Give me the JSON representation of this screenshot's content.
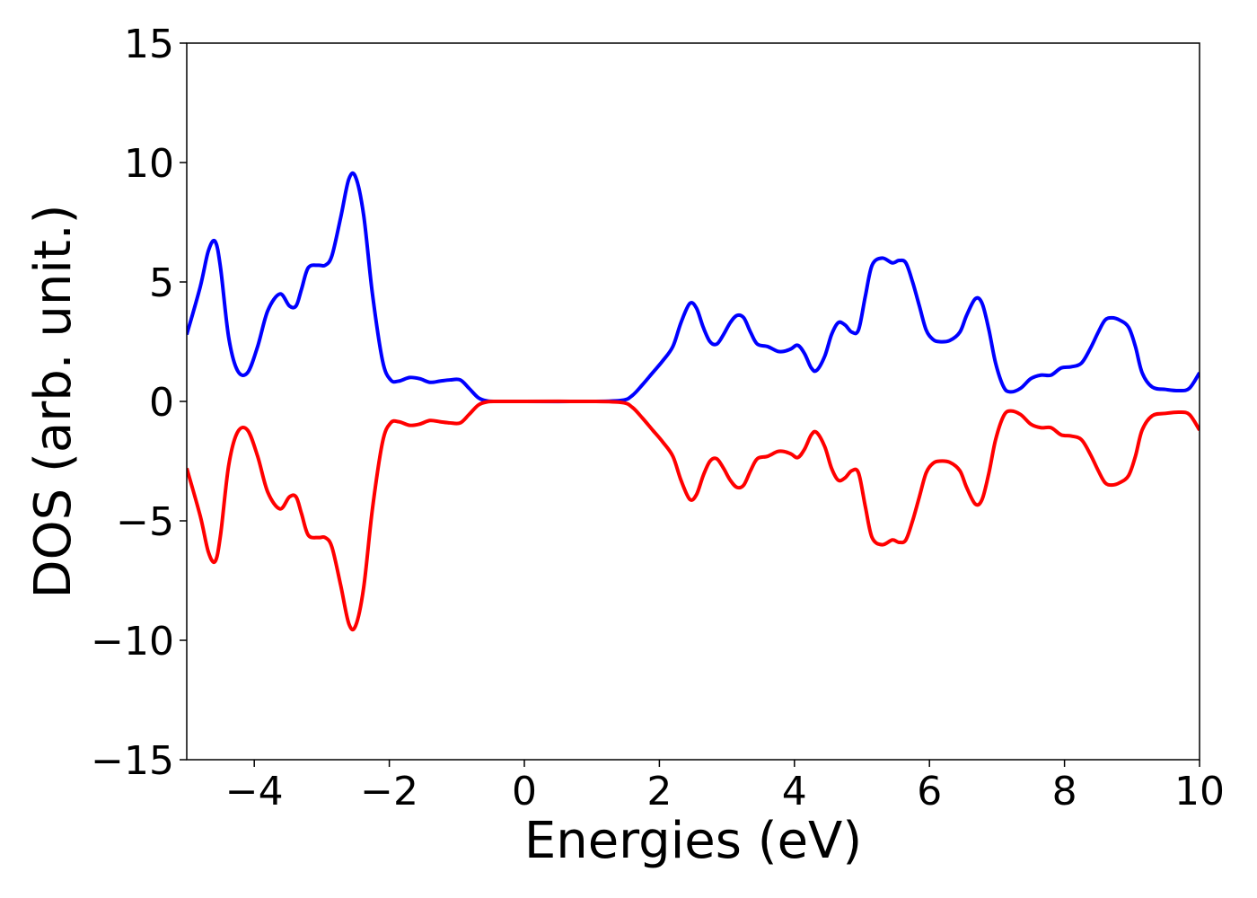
{
  "chart_data": {
    "type": "line",
    "title": "",
    "xlabel": "Energies (eV)",
    "ylabel": "DOS (arb. unit.)",
    "xlim": [
      -5,
      10
    ],
    "ylim": [
      -15,
      15
    ],
    "xticks": [
      -4,
      -2,
      0,
      2,
      4,
      6,
      8,
      10
    ],
    "xtick_labels": [
      "−4",
      "−2",
      "0",
      "2",
      "4",
      "6",
      "8",
      "10"
    ],
    "yticks": [
      15,
      10,
      5,
      0,
      -5,
      -10,
      -15
    ],
    "ytick_labels": [
      "15",
      "10",
      "5",
      "0",
      "−5",
      "−10",
      "−15"
    ],
    "grid": false,
    "legend": "none",
    "series": [
      {
        "color": "#0000ff",
        "x": [
          -5.0,
          -4.8,
          -4.68,
          -4.58,
          -4.5,
          -4.38,
          -4.25,
          -4.1,
          -3.95,
          -3.8,
          -3.62,
          -3.48,
          -3.38,
          -3.3,
          -3.2,
          -3.05,
          -2.95,
          -2.85,
          -2.72,
          -2.6,
          -2.5,
          -2.38,
          -2.25,
          -2.1,
          -1.98,
          -1.86,
          -1.7,
          -1.55,
          -1.4,
          -1.25,
          -1.1,
          -0.95,
          -0.82,
          -0.68,
          -0.55,
          -0.4,
          0.0,
          1.0,
          1.45,
          1.6,
          1.75,
          1.9,
          2.05,
          2.2,
          2.32,
          2.45,
          2.55,
          2.65,
          2.75,
          2.85,
          2.95,
          3.05,
          3.15,
          3.25,
          3.35,
          3.45,
          3.6,
          3.75,
          3.85,
          3.95,
          4.05,
          4.15,
          4.25,
          4.33,
          4.45,
          4.55,
          4.65,
          4.75,
          4.85,
          4.95,
          5.05,
          5.15,
          5.3,
          5.45,
          5.55,
          5.65,
          5.75,
          5.85,
          5.95,
          6.05,
          6.15,
          6.3,
          6.45,
          6.55,
          6.68,
          6.78,
          6.88,
          6.98,
          7.1,
          7.2,
          7.35,
          7.5,
          7.65,
          7.8,
          7.95,
          8.1,
          8.25,
          8.38,
          8.5,
          8.6,
          8.7,
          8.82,
          8.95,
          9.05,
          9.15,
          9.3,
          9.5,
          9.7,
          9.85,
          10.0
        ],
        "y": [
          2.8,
          4.8,
          6.3,
          6.7,
          5.6,
          2.7,
          1.3,
          1.2,
          2.3,
          3.8,
          4.5,
          4.0,
          4.0,
          4.7,
          5.6,
          5.7,
          5.7,
          6.1,
          7.7,
          9.3,
          9.4,
          7.8,
          4.5,
          1.7,
          0.9,
          0.85,
          1.0,
          0.95,
          0.8,
          0.85,
          0.9,
          0.9,
          0.55,
          0.15,
          0.02,
          0.0,
          0.0,
          0.0,
          0.05,
          0.25,
          0.7,
          1.2,
          1.7,
          2.3,
          3.3,
          4.1,
          3.9,
          3.1,
          2.5,
          2.4,
          2.8,
          3.3,
          3.6,
          3.5,
          2.9,
          2.4,
          2.3,
          2.1,
          2.1,
          2.2,
          2.35,
          2.0,
          1.4,
          1.3,
          1.9,
          2.8,
          3.3,
          3.2,
          2.9,
          3.0,
          4.4,
          5.7,
          6.0,
          5.8,
          5.9,
          5.8,
          5.0,
          4.0,
          3.0,
          2.6,
          2.5,
          2.55,
          2.9,
          3.6,
          4.3,
          4.1,
          3.0,
          1.6,
          0.6,
          0.4,
          0.55,
          0.95,
          1.1,
          1.1,
          1.4,
          1.45,
          1.6,
          2.2,
          2.9,
          3.4,
          3.5,
          3.4,
          3.1,
          2.3,
          1.2,
          0.6,
          0.5,
          0.45,
          0.55,
          1.2
        ]
      },
      {
        "color": "#ff0000",
        "x": [
          -5.0,
          -4.8,
          -4.68,
          -4.58,
          -4.5,
          -4.38,
          -4.25,
          -4.1,
          -3.95,
          -3.8,
          -3.62,
          -3.48,
          -3.38,
          -3.3,
          -3.2,
          -3.05,
          -2.95,
          -2.85,
          -2.72,
          -2.6,
          -2.5,
          -2.38,
          -2.25,
          -2.1,
          -1.98,
          -1.86,
          -1.7,
          -1.55,
          -1.4,
          -1.25,
          -1.1,
          -0.95,
          -0.82,
          -0.68,
          -0.55,
          -0.4,
          0.0,
          1.0,
          1.45,
          1.6,
          1.75,
          1.9,
          2.05,
          2.2,
          2.32,
          2.45,
          2.55,
          2.65,
          2.75,
          2.85,
          2.95,
          3.05,
          3.15,
          3.25,
          3.35,
          3.45,
          3.6,
          3.75,
          3.85,
          3.95,
          4.05,
          4.15,
          4.25,
          4.33,
          4.45,
          4.55,
          4.65,
          4.75,
          4.85,
          4.95,
          5.05,
          5.15,
          5.3,
          5.45,
          5.55,
          5.65,
          5.75,
          5.85,
          5.95,
          6.05,
          6.15,
          6.3,
          6.45,
          6.55,
          6.68,
          6.78,
          6.88,
          6.98,
          7.1,
          7.2,
          7.35,
          7.5,
          7.65,
          7.8,
          7.95,
          8.1,
          8.25,
          8.38,
          8.5,
          8.6,
          8.7,
          8.82,
          8.95,
          9.05,
          9.15,
          9.3,
          9.5,
          9.7,
          9.85,
          10.0
        ],
        "y": [
          -2.8,
          -4.8,
          -6.3,
          -6.7,
          -5.6,
          -2.7,
          -1.3,
          -1.2,
          -2.3,
          -3.8,
          -4.5,
          -4.0,
          -4.0,
          -4.7,
          -5.6,
          -5.7,
          -5.7,
          -6.1,
          -7.7,
          -9.3,
          -9.4,
          -7.8,
          -4.5,
          -1.7,
          -0.9,
          -0.85,
          -1.0,
          -0.95,
          -0.8,
          -0.85,
          -0.9,
          -0.9,
          -0.55,
          -0.15,
          -0.02,
          0.0,
          0.0,
          0.0,
          -0.05,
          -0.25,
          -0.7,
          -1.2,
          -1.7,
          -2.3,
          -3.3,
          -4.1,
          -3.9,
          -3.1,
          -2.5,
          -2.4,
          -2.8,
          -3.3,
          -3.6,
          -3.5,
          -2.9,
          -2.4,
          -2.3,
          -2.1,
          -2.1,
          -2.2,
          -2.35,
          -2.0,
          -1.4,
          -1.3,
          -1.9,
          -2.8,
          -3.3,
          -3.2,
          -2.9,
          -3.0,
          -4.4,
          -5.7,
          -6.0,
          -5.8,
          -5.9,
          -5.8,
          -5.0,
          -4.0,
          -3.0,
          -2.6,
          -2.5,
          -2.55,
          -2.9,
          -3.6,
          -4.3,
          -4.1,
          -3.0,
          -1.6,
          -0.6,
          -0.4,
          -0.55,
          -0.95,
          -1.1,
          -1.1,
          -1.4,
          -1.45,
          -1.6,
          -2.2,
          -2.9,
          -3.4,
          -3.5,
          -3.4,
          -3.1,
          -2.3,
          -1.2,
          -0.6,
          -0.5,
          -0.45,
          -0.55,
          -1.2
        ]
      }
    ]
  }
}
